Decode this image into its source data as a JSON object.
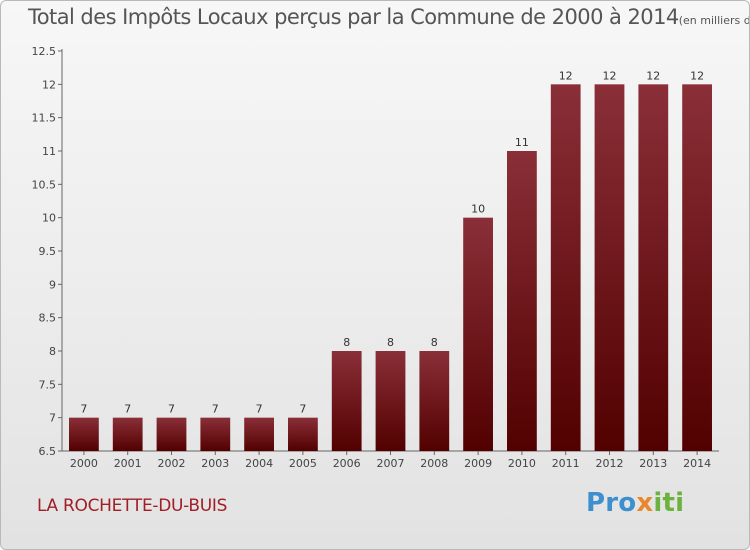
{
  "title": "Total des Impôts Locaux perçus par la Commune de 2000 à 2014",
  "unit_note": "(en milliers d'€)",
  "location": "LA ROCHETTE-DU-BUIS",
  "brand": {
    "part1": "Pro",
    "part2": "x",
    "part3": "iti"
  },
  "colors": {
    "bar_top": "#8a2f38",
    "bar_bottom": "#520000",
    "title": "#555555",
    "location": "#a11e25"
  },
  "chart_data": {
    "type": "bar",
    "title": "Total des Impôts Locaux perçus par la Commune de 2000 à 2014",
    "xlabel": "",
    "ylabel": "",
    "categories": [
      "2000",
      "2001",
      "2002",
      "2003",
      "2004",
      "2005",
      "2006",
      "2007",
      "2008",
      "2009",
      "2010",
      "2011",
      "2012",
      "2013",
      "2014"
    ],
    "values": [
      7,
      7,
      7,
      7,
      7,
      7,
      8,
      8,
      8,
      10,
      11,
      12,
      12,
      12,
      12
    ],
    "data_labels": [
      "7",
      "7",
      "7",
      "7",
      "7",
      "7",
      "8",
      "8",
      "8",
      "10",
      "11",
      "12",
      "12",
      "12",
      "12"
    ],
    "ylim": [
      6.5,
      12.5
    ],
    "yticks": [
      "6.5",
      "7",
      "7.5",
      "8",
      "8.5",
      "9",
      "9.5",
      "10",
      "10.5",
      "11",
      "11.5",
      "12",
      "12.5"
    ],
    "grid": false,
    "legend": "none"
  }
}
